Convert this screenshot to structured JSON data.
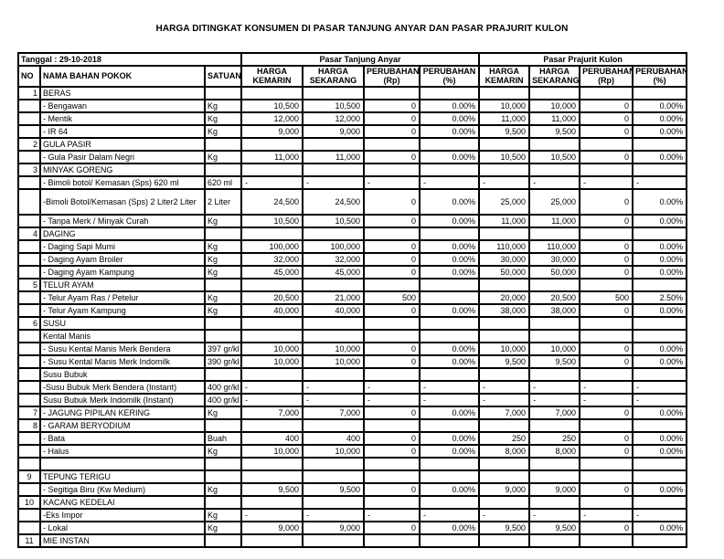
{
  "title": "HARGA DITINGKAT KONSUMEN DI PASAR TANJUNG ANYAR DAN PASAR PRAJURIT KULON",
  "table": {
    "date_label": "Tanggal : 29-10-2018",
    "market_headers": [
      "Pasar Tanjung Anyar",
      "Pasar Prajurit Kulon"
    ],
    "columns": {
      "no": "NO",
      "name": "NAMA BAHAN POKOK",
      "unit": "SATUAN"
    },
    "sub_headers": [
      {
        "l1": "HARGA",
        "l2": "KEMARIN"
      },
      {
        "l1": "HARGA",
        "l2": "SEKARANG"
      },
      {
        "l1": "PERUBAHAN",
        "l2": "(Rp)"
      },
      {
        "l1": "PERUBAHAN",
        "l2": "(%)"
      },
      {
        "l1": "HARGA",
        "l2": "KEMARIN"
      },
      {
        "l1": "HARGA",
        "l2": "SEKARANG"
      },
      {
        "l1": "PERUBAHAN",
        "l2": "(Rp)"
      },
      {
        "l1": "PERUBAHAN",
        "l2": "(%)"
      }
    ],
    "rows": [
      {
        "no": "1",
        "name": "BERAS",
        "unit": "",
        "values": [
          "",
          "",
          "",
          "",
          "",
          "",
          "",
          ""
        ]
      },
      {
        "no": "",
        "name": "- Bengawan",
        "unit": "Kg",
        "values": [
          "10,500",
          "10,500",
          "0",
          "0.00%",
          "10,000",
          "10,000",
          "0",
          "0.00%"
        ]
      },
      {
        "no": "",
        "name": "- Mentik",
        "unit": "Kg",
        "values": [
          "12,000",
          "12,000",
          "0",
          "0.00%",
          "11,000",
          "11,000",
          "0",
          "0.00%"
        ]
      },
      {
        "no": "",
        "name": "- IR 64",
        "unit": "Kg",
        "values": [
          "9,000",
          "9,000",
          "0",
          "0.00%",
          "9,500",
          "9,500",
          "0",
          "0.00%"
        ]
      },
      {
        "no": "2",
        "name": "GULA PASIR",
        "unit": "",
        "values": [
          "",
          "",
          "",
          "",
          "",
          "",
          "",
          ""
        ]
      },
      {
        "no": "",
        "name": "- Gula Pasir Dalam Negri",
        "unit": "Kg",
        "values": [
          "11,000",
          "11,000",
          "0",
          "0.00%",
          "10,500",
          "10,500",
          "0",
          "0.00%"
        ]
      },
      {
        "no": "3",
        "name": "MINYAK GORENG",
        "unit": "",
        "values": [
          "",
          "",
          "",
          "",
          "",
          "",
          "",
          ""
        ]
      },
      {
        "no": "",
        "name": "- Bimoli botol/ Kemasan (Sps) 620 ml",
        "unit": "620 ml",
        "values": [
          "-",
          "-",
          "-",
          "-",
          "-",
          "-",
          "-",
          "-"
        ]
      },
      {
        "no": "",
        "name": "-Bimoli Botol/Kemasan (Sps) 2 Liter2 Liter",
        "unit": "2 Liter",
        "values": [
          "24,500",
          "24,500",
          "0",
          "0.00%",
          "25,000",
          "25,000",
          "0",
          "0.00%"
        ],
        "tall": true
      },
      {
        "no": "",
        "name": "- Tanpa Merk / Minyak Curah",
        "unit": "Kg",
        "values": [
          "10,500",
          "10,500",
          "0",
          "0.00%",
          "11,000",
          "11,000",
          "0",
          "0.00%"
        ]
      },
      {
        "no": "4",
        "name": "DAGING",
        "unit": "",
        "values": [
          "",
          "",
          "",
          "",
          "",
          "",
          "",
          ""
        ]
      },
      {
        "no": "",
        "name": "- Daging Sapi Mumi",
        "unit": "Kg",
        "values": [
          "100,000",
          "100,000",
          "0",
          "0.00%",
          "110,000",
          "110,000",
          "0",
          "0.00%"
        ]
      },
      {
        "no": "",
        "name": "- Daging Ayam Broiler",
        "unit": "Kg",
        "values": [
          "32,000",
          "32,000",
          "0",
          "0.00%",
          "30,000",
          "30,000",
          "0",
          "0.00%"
        ]
      },
      {
        "no": "",
        "name": "- Daging Ayam Kampung",
        "unit": "Kg",
        "values": [
          "45,000",
          "45,000",
          "0",
          "0.00%",
          "50,000",
          "50,000",
          "0",
          "0.00%"
        ]
      },
      {
        "no": "5",
        "name": "TELUR AYAM",
        "unit": "",
        "values": [
          "",
          "",
          "",
          "",
          "",
          "",
          "",
          ""
        ]
      },
      {
        "no": "",
        "name": "- Telur Ayam Ras / Petelur",
        "unit": "Kg",
        "values": [
          "20,500",
          "21,000",
          "500",
          "",
          "20,000",
          "20,500",
          "500",
          "2.50%"
        ]
      },
      {
        "no": "",
        "name": "- Telur Ayam Kampung",
        "unit": "Kg",
        "values": [
          "40,000",
          "40,000",
          "0",
          "0.00%",
          "38,000",
          "38,000",
          "0",
          "0.00%"
        ]
      },
      {
        "no": "6",
        "name": "SUSU",
        "unit": "",
        "values": [
          "",
          "",
          "",
          "",
          "",
          "",
          "",
          ""
        ]
      },
      {
        "no": "",
        "name": "Kental Manis",
        "unit": "",
        "values": [
          "",
          "",
          "",
          "",
          "",
          "",
          "",
          ""
        ]
      },
      {
        "no": "",
        "name": "- Susu Kental Manis Merk Bendera",
        "unit": "397 gr/kl",
        "values": [
          "10,000",
          "10,000",
          "0",
          "0.00%",
          "10,000",
          "10,000",
          "0",
          "0.00%"
        ]
      },
      {
        "no": "",
        "name": "- Susu Kental Manis Merk Indomilk",
        "unit": "390 gr/kl",
        "values": [
          "10,000",
          "10,000",
          "0",
          "0.00%",
          "9,500",
          "9,500",
          "0",
          "0.00%"
        ]
      },
      {
        "no": "",
        "name": "Susu Bubuk",
        "unit": "",
        "values": [
          "",
          "",
          "",
          "",
          "",
          "",
          "",
          ""
        ]
      },
      {
        "no": "",
        "name": "-Susu Bubuk Merk Bendera (Instant)",
        "unit": "400 gr/kl",
        "values": [
          "-",
          "-",
          "-",
          "-",
          "-",
          "-",
          "-",
          "-"
        ]
      },
      {
        "no": "",
        "name": "Susu Bubuk Merk Indomilk (Instant)",
        "unit": "400 gr/kl",
        "values": [
          "-",
          "-",
          "-",
          "-",
          "-",
          "-",
          "-",
          "-"
        ]
      },
      {
        "no": "7",
        "name": "- JAGUNG PIPILAN KERING",
        "unit": "Kg",
        "values": [
          "7,000",
          "7,000",
          "0",
          "0.00%",
          "7,000",
          "7,000",
          "0",
          "0.00%"
        ]
      },
      {
        "no": "8",
        "name": "- GARAM BERYODIUM",
        "unit": "",
        "values": [
          "",
          "",
          "",
          "",
          "",
          "",
          "",
          ""
        ]
      },
      {
        "no": "",
        "name": "- Bata",
        "unit": "Buah",
        "values": [
          "400",
          "400",
          "0",
          "0.00%",
          "250",
          "250",
          "0",
          "0.00%"
        ]
      },
      {
        "no": "",
        "name": "- Halus",
        "unit": "Kg",
        "values": [
          "10,000",
          "10,000",
          "0",
          "0.00%",
          "8,000",
          "8,000",
          "0",
          "0.00%"
        ]
      },
      {
        "no": "",
        "name": "",
        "unit": "",
        "values": [
          "",
          "",
          "",
          "",
          "",
          "",
          "",
          ""
        ]
      },
      {
        "no": "9",
        "name": "TEPUNG TERIGU",
        "unit": "",
        "values": [
          "",
          "",
          "",
          "",
          "",
          "",
          "",
          ""
        ],
        "no_center": true
      },
      {
        "no": "",
        "name": "- Segitiga Biru (Kw Medium)",
        "unit": "Kg",
        "values": [
          "9,500",
          "9,500",
          "0",
          "0.00%",
          "9,000",
          "9,000",
          "0",
          "0.00%"
        ]
      },
      {
        "no": "10",
        "name": "KACANG KEDELAI",
        "unit": "",
        "values": [
          "",
          "",
          "",
          "",
          "",
          "",
          "",
          ""
        ],
        "no_center": true
      },
      {
        "no": "",
        "name": "-Eks Impor",
        "unit": "Kg",
        "values": [
          "-",
          "-",
          "-",
          "-",
          "-",
          "-",
          "-",
          "-"
        ]
      },
      {
        "no": "",
        "name": "- Lokal",
        "unit": "Kg",
        "values": [
          "9,000",
          "9,000",
          "0",
          "0.00%",
          "9,500",
          "9,500",
          "0",
          "0.00%"
        ]
      },
      {
        "no": "11",
        "name": "MIE INSTAN",
        "unit": "",
        "values": [
          "",
          "",
          "",
          "",
          "",
          "",
          "",
          ""
        ],
        "no_center": true
      }
    ]
  }
}
